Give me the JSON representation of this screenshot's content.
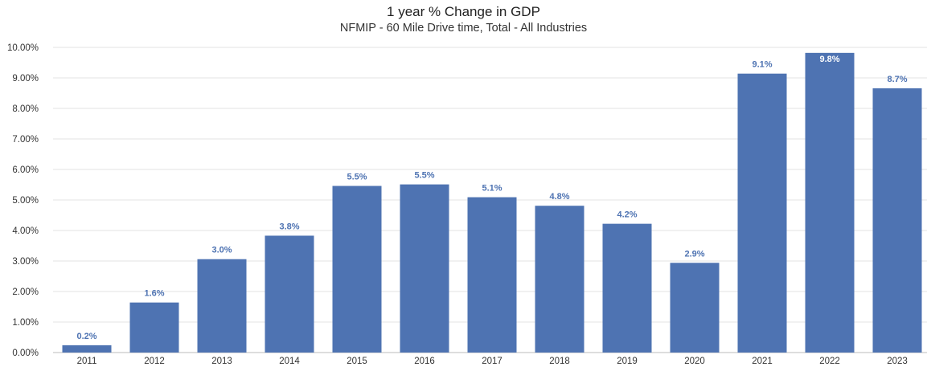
{
  "chart_data": {
    "type": "bar",
    "title": "1 year % Change in GDP",
    "subtitle": "NFMIP - 60 Mile Drive time, Total - All Industries",
    "xlabel": "",
    "ylabel": "",
    "categories": [
      "2011",
      "2012",
      "2013",
      "2014",
      "2015",
      "2016",
      "2017",
      "2018",
      "2019",
      "2020",
      "2021",
      "2022",
      "2023"
    ],
    "values": [
      0.2,
      1.6,
      3.0,
      3.8,
      5.5,
      5.5,
      5.1,
      4.8,
      4.2,
      2.9,
      9.1,
      9.8,
      8.7
    ],
    "bar_values_pct": [
      0.24,
      1.64,
      3.06,
      3.83,
      5.46,
      5.51,
      5.09,
      4.81,
      4.22,
      2.94,
      9.14,
      9.82,
      8.66
    ],
    "data_labels": [
      "0.2%",
      "1.6%",
      "3.0%",
      "3.8%",
      "5.5%",
      "5.5%",
      "5.1%",
      "4.8%",
      "4.2%",
      "2.9%",
      "9.1%",
      "9.8%",
      "8.7%"
    ],
    "y_ticks": [
      "0.00%",
      "1.00%",
      "2.00%",
      "3.00%",
      "4.00%",
      "5.00%",
      "6.00%",
      "7.00%",
      "8.00%",
      "9.00%",
      "10.00%"
    ],
    "ylim": [
      0,
      10
    ],
    "grid": true,
    "legend": "none",
    "colors": {
      "bar": "#4e73b2",
      "label_outside": "#4e73b2",
      "label_inside": "#ffffff",
      "grid": "#e3e3e3",
      "axis": "#bbbbbb"
    }
  }
}
